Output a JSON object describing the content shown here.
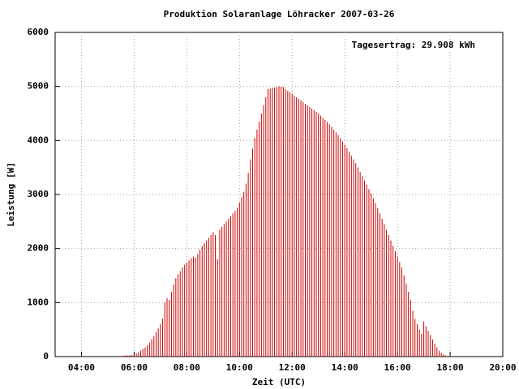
{
  "chart_data": {
    "type": "impulse",
    "title": "Produktion Solaranlage Löhracker 2007-03-26",
    "xlabel": "Zeit (UTC)",
    "ylabel": "Leistung [W]",
    "annotation": "Tagesertrag: 29.908 kWh",
    "color": "#cc0000",
    "grid": true,
    "xlim": [
      "03:00",
      "20:00"
    ],
    "xticks": [
      "04:00",
      "06:00",
      "08:00",
      "10:00",
      "12:00",
      "14:00",
      "16:00",
      "18:00",
      "20:00"
    ],
    "ylim": [
      0,
      6000
    ],
    "yticks": [
      0,
      1000,
      2000,
      3000,
      4000,
      5000,
      6000
    ],
    "x": [
      "05:00",
      "05:05",
      "05:10",
      "05:15",
      "05:20",
      "05:25",
      "05:30",
      "05:35",
      "05:40",
      "05:45",
      "05:50",
      "05:55",
      "06:00",
      "06:05",
      "06:10",
      "06:15",
      "06:20",
      "06:25",
      "06:30",
      "06:35",
      "06:40",
      "06:45",
      "06:50",
      "06:55",
      "07:00",
      "07:05",
      "07:10",
      "07:15",
      "07:20",
      "07:25",
      "07:30",
      "07:35",
      "07:40",
      "07:45",
      "07:50",
      "07:55",
      "08:00",
      "08:05",
      "08:10",
      "08:15",
      "08:20",
      "08:25",
      "08:30",
      "08:35",
      "08:40",
      "08:45",
      "08:50",
      "08:55",
      "09:00",
      "09:05",
      "09:10",
      "09:15",
      "09:20",
      "09:25",
      "09:30",
      "09:35",
      "09:40",
      "09:45",
      "09:50",
      "09:55",
      "10:00",
      "10:05",
      "10:10",
      "10:15",
      "10:20",
      "10:25",
      "10:30",
      "10:35",
      "10:40",
      "10:45",
      "10:50",
      "10:55",
      "11:00",
      "11:05",
      "11:10",
      "11:15",
      "11:20",
      "11:25",
      "11:30",
      "11:35",
      "11:40",
      "11:45",
      "11:50",
      "11:55",
      "12:00",
      "12:05",
      "12:10",
      "12:15",
      "12:20",
      "12:25",
      "12:30",
      "12:35",
      "12:40",
      "12:45",
      "12:50",
      "12:55",
      "13:00",
      "13:05",
      "13:10",
      "13:15",
      "13:20",
      "13:25",
      "13:30",
      "13:35",
      "13:40",
      "13:45",
      "13:50",
      "13:55",
      "14:00",
      "14:05",
      "14:10",
      "14:15",
      "14:20",
      "14:25",
      "14:30",
      "14:35",
      "14:40",
      "14:45",
      "14:50",
      "14:55",
      "15:00",
      "15:05",
      "15:10",
      "15:15",
      "15:20",
      "15:25",
      "15:30",
      "15:35",
      "15:40",
      "15:45",
      "15:50",
      "15:55",
      "16:00",
      "16:05",
      "16:10",
      "16:15",
      "16:20",
      "16:25",
      "16:30",
      "16:35",
      "16:40",
      "16:45",
      "16:50",
      "16:55",
      "17:00",
      "17:05",
      "17:10",
      "17:15",
      "17:20",
      "17:25",
      "17:30",
      "17:35",
      "17:40",
      "17:45",
      "17:50",
      "17:55"
    ],
    "values": [
      0,
      0,
      0,
      5,
      5,
      10,
      10,
      15,
      20,
      20,
      25,
      30,
      40,
      60,
      80,
      110,
      140,
      170,
      210,
      260,
      320,
      380,
      460,
      520,
      600,
      700,
      1000,
      1080,
      1050,
      1200,
      1330,
      1450,
      1520,
      1580,
      1650,
      1700,
      1740,
      1780,
      1820,
      1850,
      1830,
      1900,
      1980,
      2050,
      2100,
      2150,
      2200,
      2250,
      2300,
      2250,
      1800,
      2350,
      2400,
      2450,
      2500,
      2550,
      2600,
      2650,
      2700,
      2750,
      2850,
      2950,
      3050,
      3200,
      3400,
      3650,
      3850,
      4050,
      4200,
      4350,
      4500,
      4650,
      4800,
      4950,
      4960,
      4970,
      4980,
      4990,
      5000,
      5000,
      4990,
      4950,
      4920,
      4890,
      4860,
      4830,
      4800,
      4770,
      4740,
      4710,
      4680,
      4650,
      4620,
      4590,
      4560,
      4530,
      4500,
      4460,
      4420,
      4380,
      4340,
      4300,
      4250,
      4200,
      4150,
      4100,
      4040,
      3980,
      3920,
      3860,
      3790,
      3720,
      3650,
      3580,
      3500,
      3420,
      3340,
      3260,
      3180,
      3100,
      3020,
      2930,
      2840,
      2750,
      2650,
      2550,
      2450,
      2350,
      2250,
      2150,
      2050,
      1950,
      1850,
      1750,
      1650,
      1500,
      1350,
      1200,
      1050,
      850,
      700,
      600,
      500,
      420,
      650,
      560,
      480,
      400,
      320,
      240,
      170,
      110,
      70,
      40,
      20,
      10
    ]
  }
}
